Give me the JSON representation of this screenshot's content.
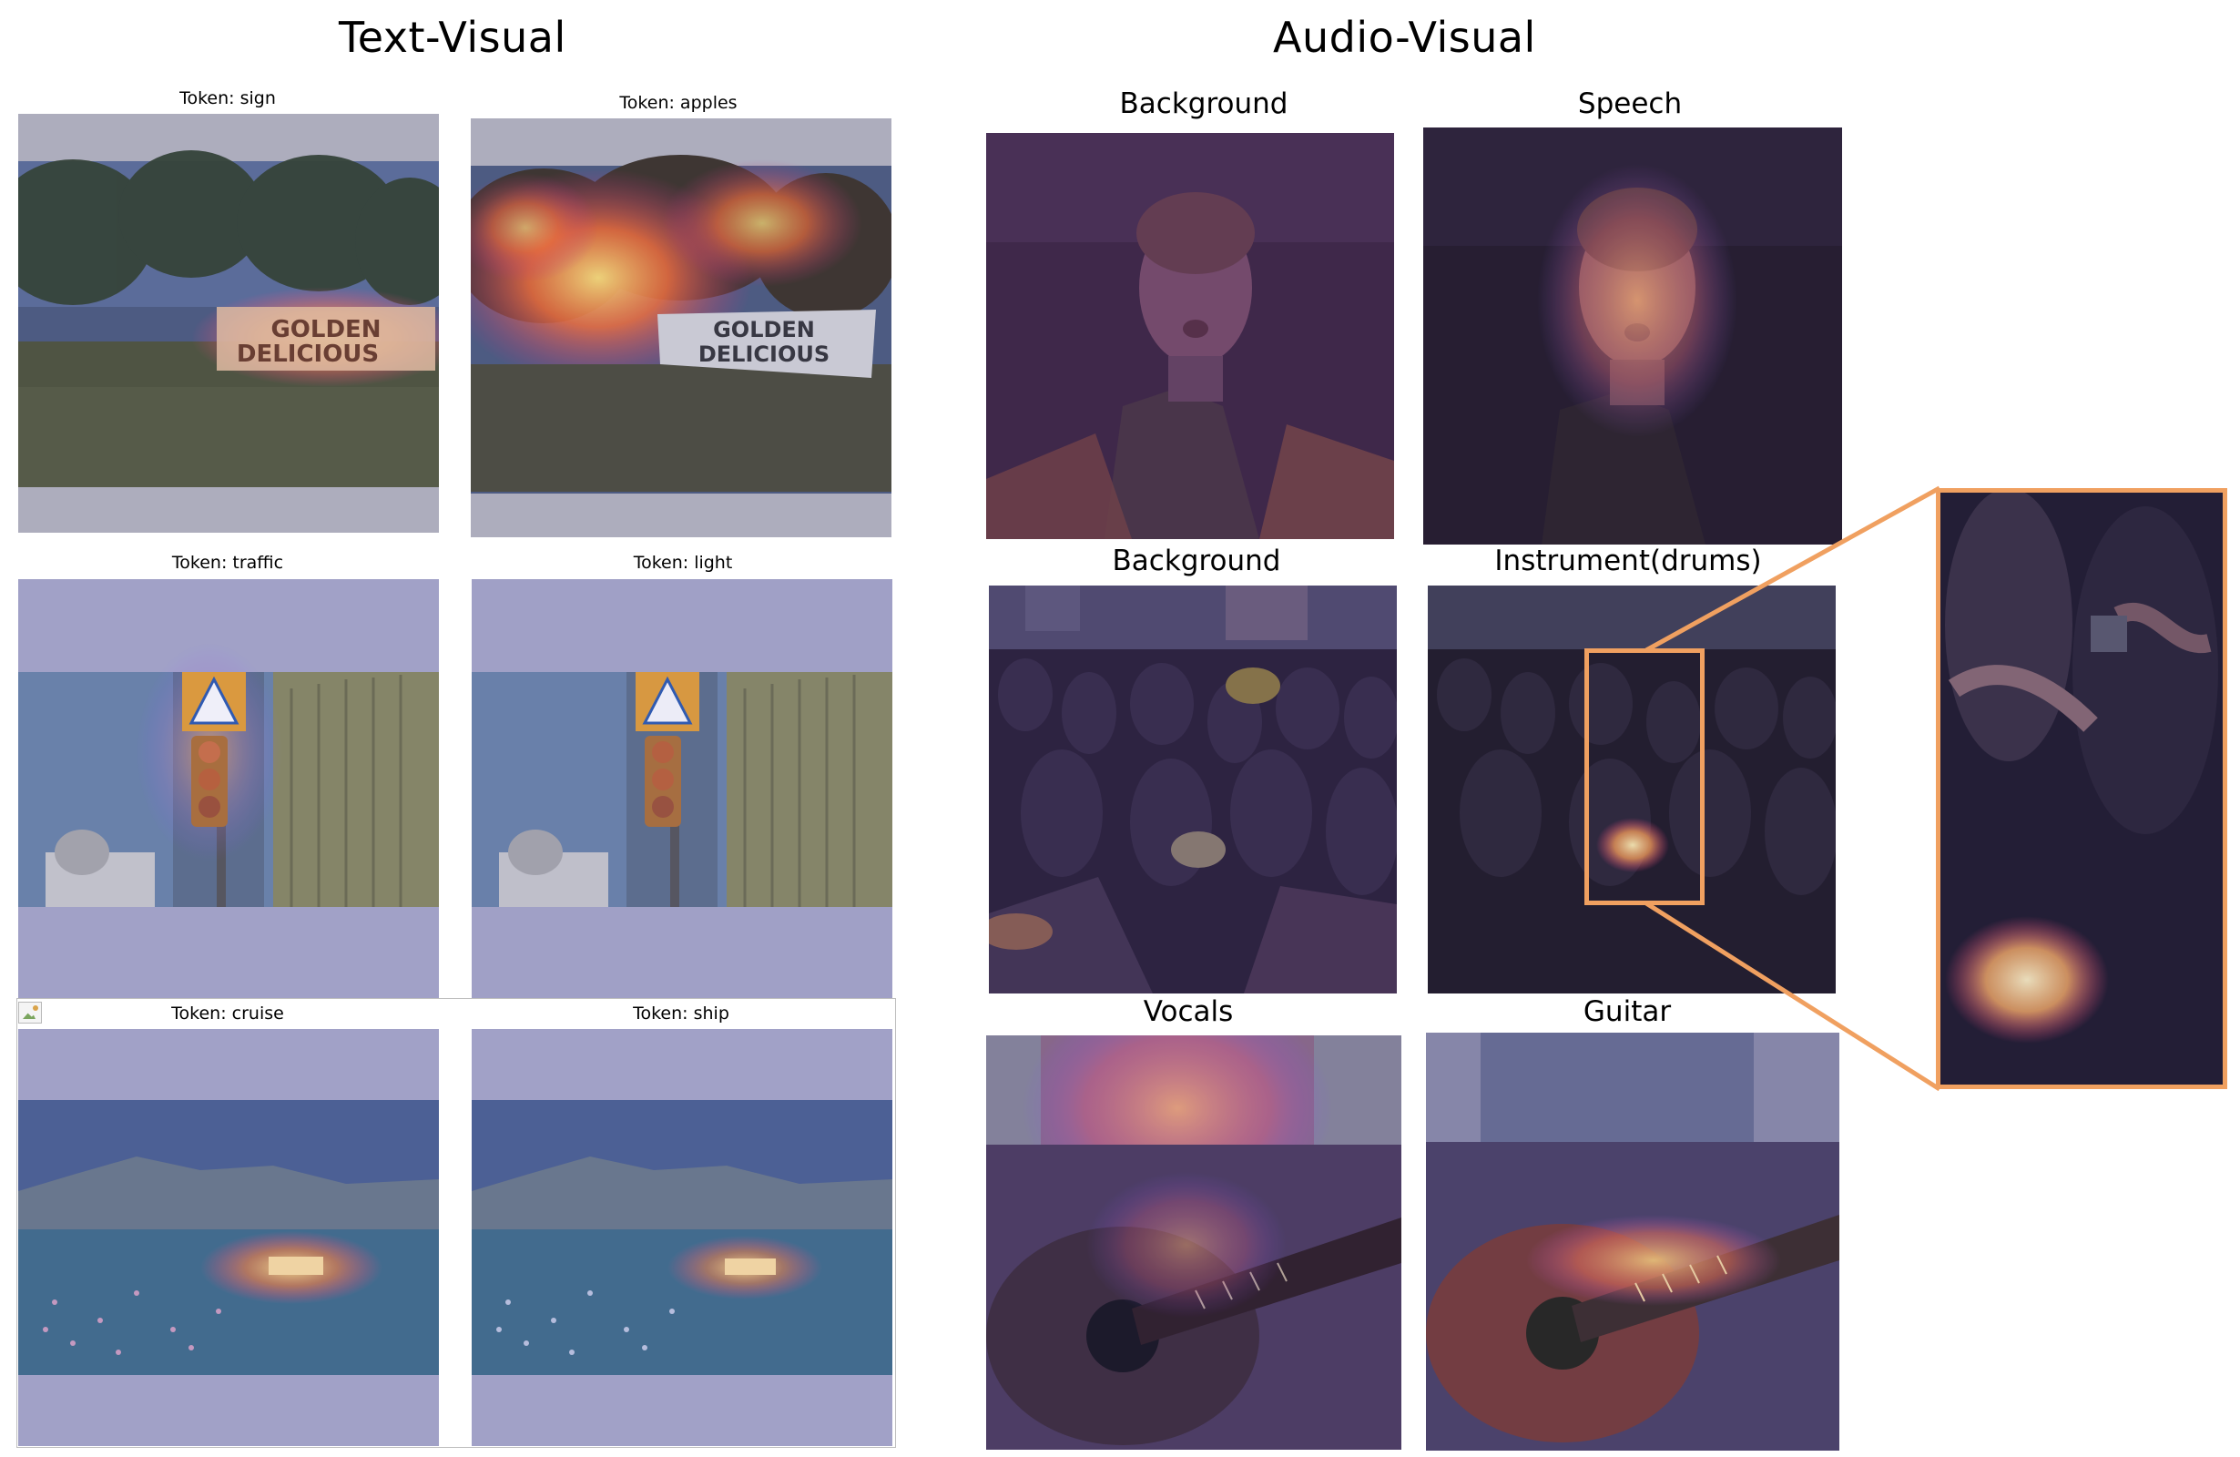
{
  "headers": {
    "text_visual": "Text-Visual",
    "audio_visual": "Audio-Visual"
  },
  "text_visual": {
    "panels": [
      {
        "caption": "Token: sign",
        "highlight": "sign-text",
        "sign_line1": "GOLDEN",
        "sign_line2": "DELICIOUS"
      },
      {
        "caption": "Token: apples",
        "highlight": "trees",
        "sign_line1": "GOLDEN",
        "sign_line2": "DELICIOUS"
      },
      {
        "caption": "Token: traffic",
        "highlight": "traffic-light"
      },
      {
        "caption": "Token: light",
        "highlight": "none"
      },
      {
        "caption": "Token: cruise",
        "highlight": "ship"
      },
      {
        "caption": "Token: ship",
        "highlight": "ship"
      }
    ]
  },
  "audio_visual": {
    "panels": [
      {
        "caption": "Background",
        "highlight": "background"
      },
      {
        "caption": "Speech",
        "highlight": "face"
      },
      {
        "caption": "Background",
        "highlight": "background"
      },
      {
        "caption": "Instrument(drums)",
        "highlight": "drum"
      },
      {
        "caption": "Vocals",
        "highlight": "torso"
      },
      {
        "caption": "Guitar",
        "highlight": "guitar-neck"
      }
    ],
    "zoom_color": "#f0a060"
  }
}
